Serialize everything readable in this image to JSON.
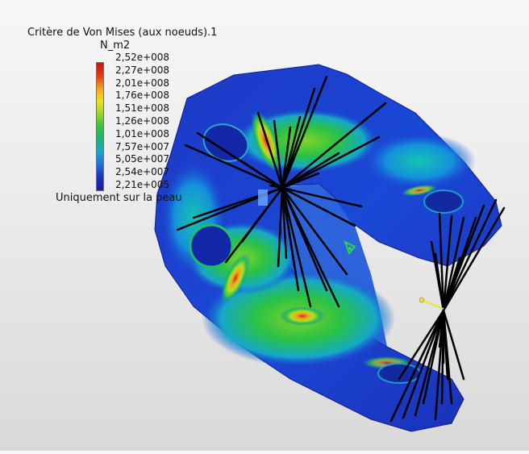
{
  "legend": {
    "title": "Critère de Von Mises (aux noeuds).1",
    "unit": "N_m2",
    "values": [
      "2,52e+008",
      "2,27e+008",
      "2,01e+008",
      "1,76e+008",
      "1,51e+008",
      "1,26e+008",
      "1,01e+008",
      "7,57e+007",
      "5,05e+007",
      "2,54e+007",
      "2,21e+005"
    ],
    "note": "Uniquement sur la peau",
    "colors": [
      "#c81414",
      "#e83a12",
      "#f7a21b",
      "#f0e21d",
      "#9ad627",
      "#2fc43a",
      "#17b67a",
      "#14a9c9",
      "#1e6de0",
      "#1b2fc0",
      "#1d1a9a"
    ]
  },
  "viewport": {
    "model": "stress-colored-part",
    "markers": [
      "fixture-restraint-icon",
      "load-point-icon",
      "coordinate-triad-icon"
    ]
  }
}
